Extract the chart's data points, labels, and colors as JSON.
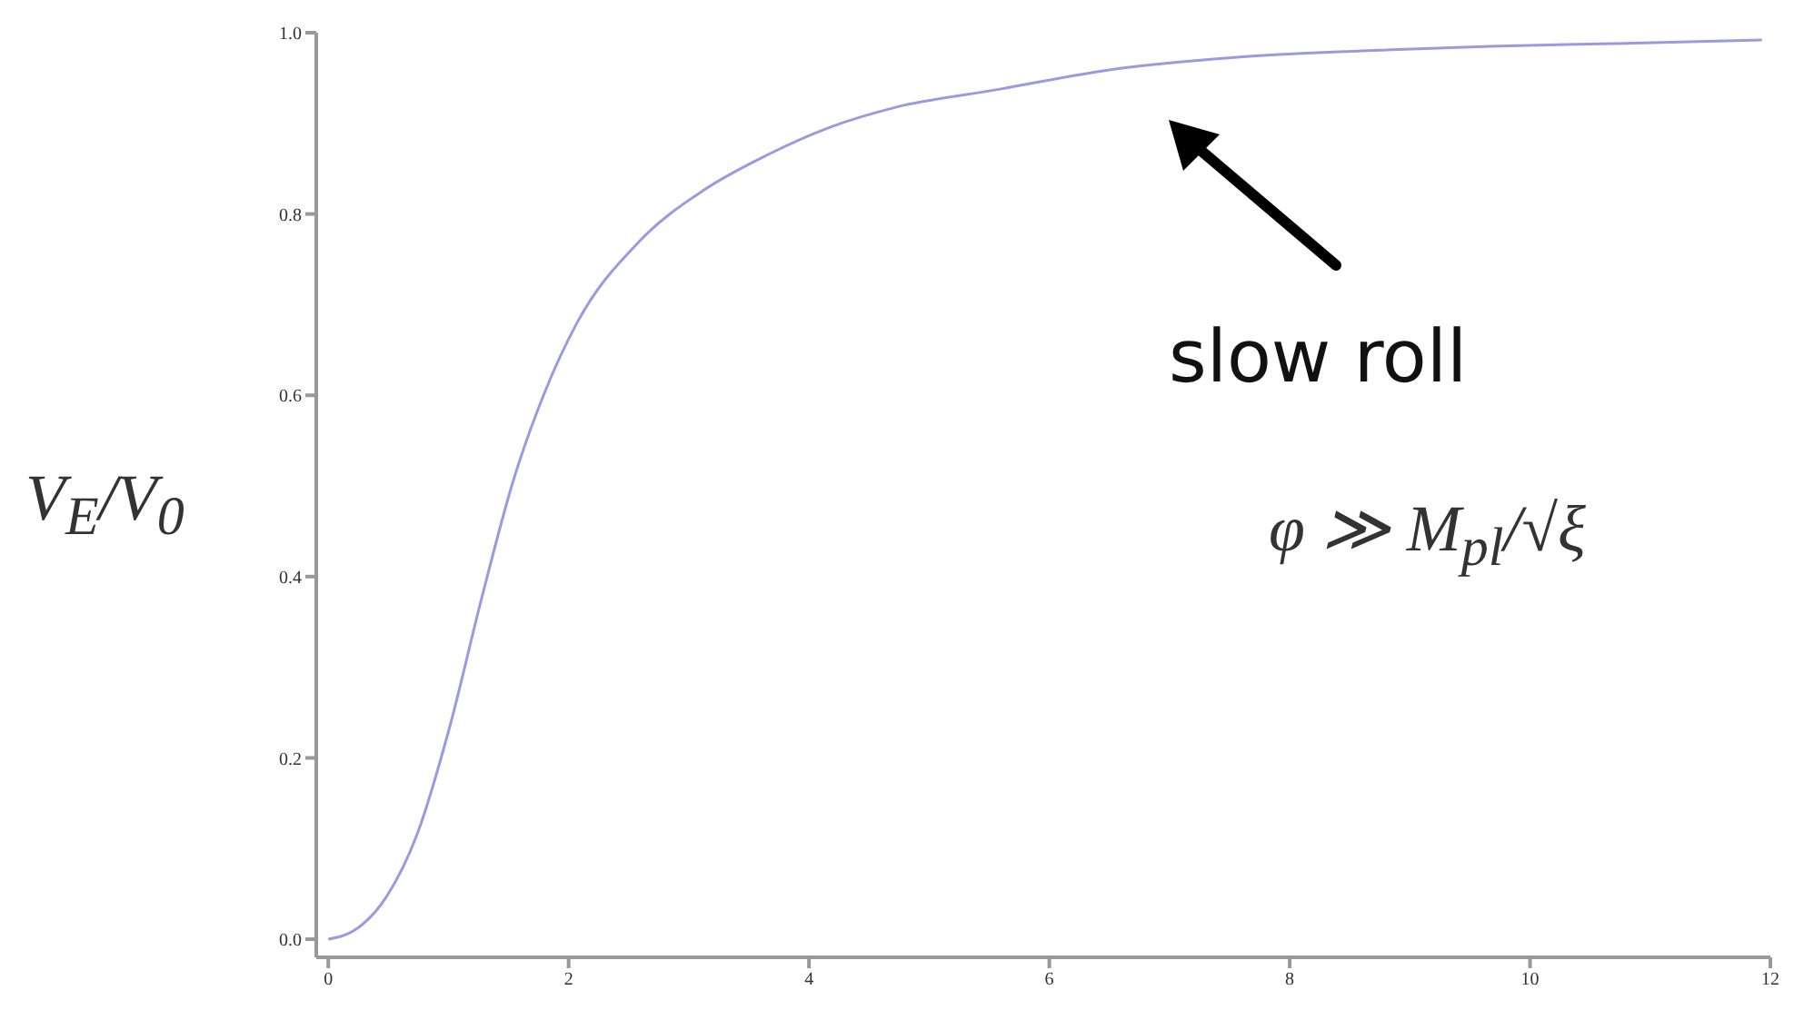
{
  "chart_data": {
    "type": "line",
    "ylabel": "V$_{E}$/V$_{0}$",
    "x": [
      0,
      0.22,
      0.48,
      0.74,
      1.01,
      1.27,
      1.54,
      1.8,
      2.07,
      2.59,
      3.12,
      3.65,
      4.18,
      4.7,
      5.6,
      6.5,
      7.56,
      8.6,
      9.67,
      10.7,
      11.93
    ],
    "series": [
      {
        "color": "#9a9ae0",
        "values": [
          0,
          0.01,
          0.046,
          0.116,
          0.234,
          0.373,
          0.506,
          0.603,
          0.68,
          0.77,
          0.826,
          0.865,
          0.896,
          0.917,
          0.938,
          0.959,
          0.973,
          0.98,
          0.985,
          0.988,
          0.992
        ]
      }
    ],
    "xlim": [
      -0.1,
      12
    ],
    "ylim": [
      -0.02,
      1.0
    ],
    "xticks": [
      0,
      2,
      4,
      6,
      8,
      10,
      12
    ],
    "yticks": [
      {
        "value": 0,
        "label": "0.0"
      },
      {
        "value": 0.2,
        "label": "0.2"
      },
      {
        "value": 0.4,
        "label": "0.4"
      },
      {
        "value": 0.6,
        "label": "0.6"
      },
      {
        "value": 0.8,
        "label": "0.8"
      },
      {
        "value": 1,
        "label": "1.0"
      }
    ],
    "grid": false,
    "legend": false,
    "marker": "none",
    "line_style": "solid",
    "annotations": [
      "slow roll",
      "φ ≫ M$_{pl}$/√ξ"
    ]
  }
}
